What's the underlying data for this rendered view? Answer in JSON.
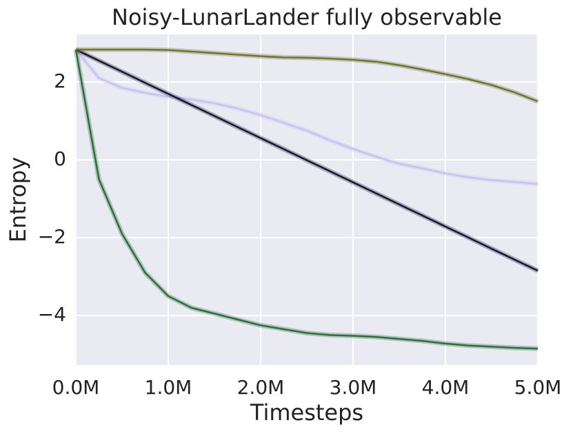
{
  "chart_data": {
    "type": "line",
    "title": "Noisy-LunarLander fully observable",
    "xlabel": "Timesteps",
    "ylabel": "Entropy",
    "x": [
      0,
      250000,
      500000,
      750000,
      1000000,
      1250000,
      1500000,
      1750000,
      2000000,
      2250000,
      2500000,
      2750000,
      3000000,
      3250000,
      3500000,
      3750000,
      4000000,
      4250000,
      4500000,
      4750000,
      5000000
    ],
    "series": [
      {
        "color": "#c9c1f4",
        "values": [
          2.83,
          2.1,
          1.85,
          1.72,
          1.62,
          1.55,
          1.45,
          1.32,
          1.15,
          0.95,
          0.75,
          0.5,
          0.28,
          0.08,
          -0.1,
          -0.22,
          -0.35,
          -0.45,
          -0.52,
          -0.57,
          -0.62
        ]
      },
      {
        "color": "#1a1633",
        "values": [
          2.83,
          2.546,
          2.262,
          1.978,
          1.694,
          1.41,
          1.126,
          0.842,
          0.558,
          0.274,
          -0.01,
          -0.294,
          -0.578,
          -0.862,
          -1.146,
          -1.43,
          -1.714,
          -1.998,
          -2.282,
          -2.566,
          -2.85
        ]
      },
      {
        "color": "#6f7434",
        "values": [
          2.83,
          2.83,
          2.83,
          2.83,
          2.82,
          2.78,
          2.74,
          2.7,
          2.66,
          2.63,
          2.62,
          2.6,
          2.57,
          2.52,
          2.43,
          2.32,
          2.2,
          2.07,
          1.92,
          1.73,
          1.5
        ]
      },
      {
        "color": "#2f6e3d",
        "values": [
          2.83,
          -0.5,
          -1.9,
          -2.9,
          -3.5,
          -3.8,
          -3.95,
          -4.1,
          -4.25,
          -4.35,
          -4.45,
          -4.5,
          -4.52,
          -4.55,
          -4.6,
          -4.65,
          -4.72,
          -4.77,
          -4.8,
          -4.83,
          -4.85
        ]
      }
    ],
    "xlim": [
      0,
      5000000
    ],
    "xticks": [
      {
        "value": 0,
        "label": "0.0M"
      },
      {
        "value": 1000000,
        "label": "1.0M"
      },
      {
        "value": 2000000,
        "label": "2.0M"
      },
      {
        "value": 3000000,
        "label": "3.0M"
      },
      {
        "value": 4000000,
        "label": "4.0M"
      },
      {
        "value": 5000000,
        "label": "5.0M"
      }
    ],
    "ylim": [
      -5.27,
      3.22
    ],
    "yticks": [
      {
        "value": -4,
        "label": "−4"
      },
      {
        "value": -2,
        "label": "−2"
      },
      0,
      2
    ],
    "grid": true
  }
}
